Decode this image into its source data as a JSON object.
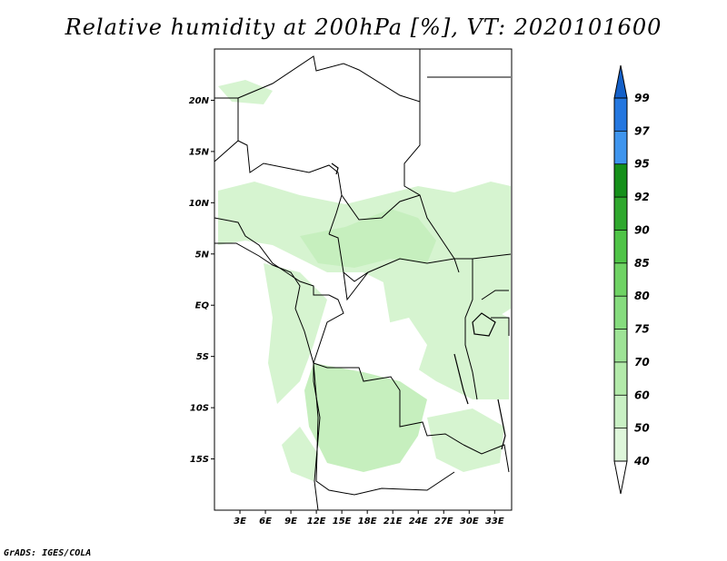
{
  "title": "Relative humidity at 200hPa [%], VT: 2020101600",
  "footer": "GrADS: IGES/COLA",
  "map": {
    "lat_labels": [
      "20N",
      "15N",
      "10N",
      "5N",
      "EQ",
      "5S",
      "10S",
      "15S"
    ],
    "lat_values": [
      20,
      15,
      10,
      5,
      0,
      -5,
      -10,
      -15
    ],
    "lon_labels": [
      "3E",
      "6E",
      "9E",
      "12E",
      "15E",
      "18E",
      "21E",
      "24E",
      "27E",
      "30E",
      "33E"
    ],
    "lon_values": [
      3,
      6,
      9,
      12,
      15,
      18,
      21,
      24,
      27,
      30,
      33
    ],
    "extent": {
      "lon_min": 0,
      "lon_max": 35,
      "lat_min": -20,
      "lat_max": 25
    }
  },
  "colorbar": {
    "levels": [
      "40",
      "50",
      "60",
      "70",
      "75",
      "80",
      "85",
      "90",
      "92",
      "95",
      "97",
      "99"
    ],
    "colors": [
      "#edfaec",
      "#def6da",
      "#c9f0c4",
      "#b3eaaa",
      "#9ee396",
      "#86dc7e",
      "#6fd364",
      "#4fc447",
      "#2fa82d",
      "#15901a",
      "#3f95ee",
      "#2477e0",
      "#1460c8"
    ],
    "top_color": "#1460c8",
    "bottom_color": "#ffffff"
  }
}
